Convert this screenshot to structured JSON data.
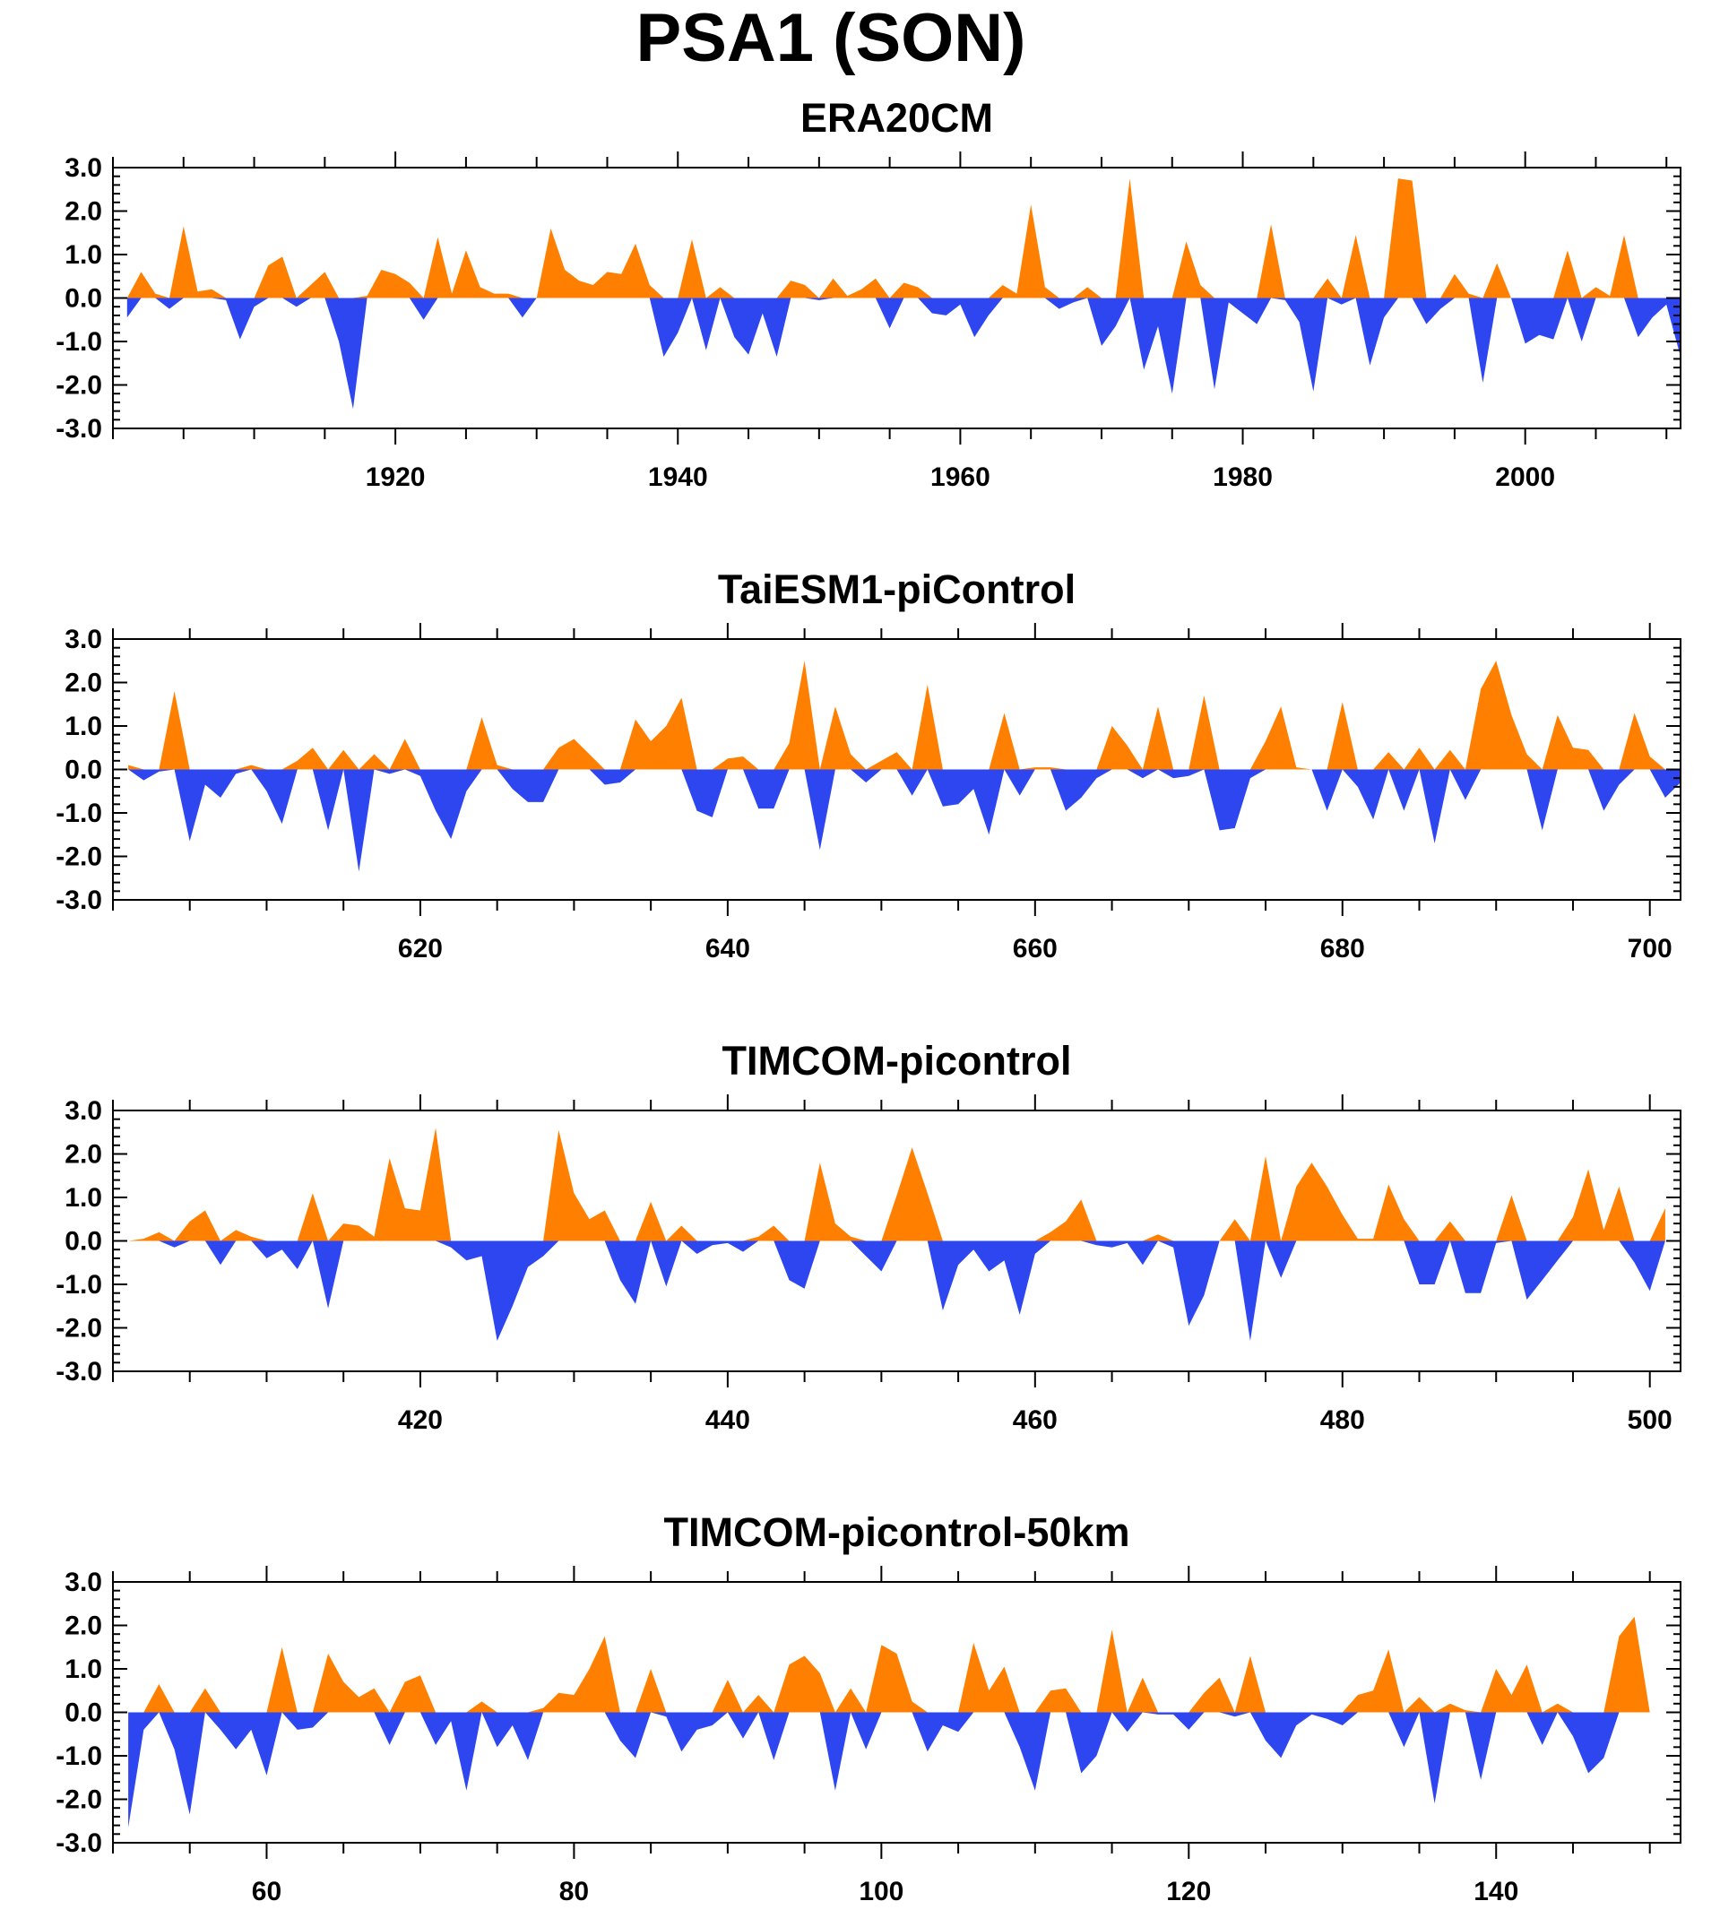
{
  "title": "PSA1 (SON)",
  "colors": {
    "positive": "#ff8000",
    "negative": "#2d46f0",
    "axis": "#000000"
  },
  "chart_data": [
    {
      "type": "area",
      "title": "ERA20CM",
      "xlabel": "",
      "ylabel": "",
      "xlim": [
        1900,
        2011
      ],
      "ylim": [
        -3,
        3
      ],
      "xticks": [
        1920,
        1940,
        1960,
        1980,
        2000
      ],
      "yticks": [
        "3.0",
        "2.0",
        "1.0",
        "0.0",
        "-1.0",
        "-2.0",
        "-3.0"
      ],
      "x_start": 1901,
      "values": [
        -0.45,
        0.6,
        0.1,
        -0.25,
        1.65,
        0.15,
        0.2,
        -0.05,
        -0.95,
        -0.2,
        0.75,
        0.95,
        -0.2,
        0.3,
        0.6,
        -1.0,
        -2.55,
        0.05,
        0.65,
        0.55,
        0.35,
        -0.5,
        1.4,
        0.1,
        1.1,
        0.25,
        0.1,
        0.1,
        -0.45,
        0.0,
        1.6,
        0.65,
        0.4,
        0.3,
        0.6,
        0.55,
        1.25,
        0.3,
        -1.35,
        -0.8,
        1.35,
        -1.2,
        0.25,
        -0.9,
        -1.3,
        -0.35,
        -1.35,
        0.4,
        0.3,
        -0.05,
        0.45,
        0.05,
        0.2,
        0.45,
        -0.7,
        0.35,
        0.25,
        -0.35,
        -0.4,
        -0.15,
        -0.9,
        -0.4,
        0.3,
        0.1,
        2.15,
        0.25,
        -0.25,
        -0.1,
        0.25,
        -1.1,
        -0.65,
        2.75,
        -1.65,
        -0.65,
        -2.2,
        1.3,
        0.3,
        -2.1,
        -0.1,
        -0.35,
        -0.6,
        1.7,
        -0.05,
        -0.55,
        -2.15,
        0.45,
        -0.15,
        1.45,
        -1.55,
        -0.45,
        2.75,
        2.7,
        -0.6,
        -0.25,
        0.55,
        0.1,
        -1.95,
        0.8,
        0.0,
        -1.05,
        -0.85,
        -0.95,
        1.1,
        -1.0,
        0.25,
        0.05,
        1.45,
        -0.9,
        -0.45,
        -0.15,
        -1.35
      ]
    },
    {
      "type": "area",
      "title": "TaiESM1-piControl",
      "xlabel": "",
      "ylabel": "",
      "xlim": [
        600,
        702
      ],
      "ylim": [
        -3,
        3
      ],
      "xticks": [
        620,
        640,
        660,
        680,
        700
      ],
      "yticks": [
        "3.0",
        "2.0",
        "1.0",
        "0.0",
        "-1.0",
        "-2.0",
        "-3.0"
      ],
      "x_start": 601,
      "values": [
        0.1,
        -0.25,
        -0.05,
        1.8,
        -1.65,
        -0.35,
        -0.65,
        -0.1,
        0.1,
        -0.5,
        -1.25,
        0.2,
        0.5,
        -1.4,
        0.45,
        -2.35,
        0.35,
        -0.1,
        0.7,
        -0.15,
        -0.95,
        -1.6,
        -0.5,
        1.2,
        0.1,
        -0.45,
        -0.75,
        -0.75,
        0.5,
        0.7,
        0.35,
        -0.35,
        -0.3,
        1.15,
        0.65,
        1.0,
        1.65,
        -0.95,
        -1.1,
        0.25,
        0.3,
        -0.9,
        -0.9,
        0.6,
        2.5,
        -1.85,
        1.45,
        0.35,
        -0.3,
        0.2,
        0.4,
        -0.6,
        1.95,
        -0.85,
        -0.8,
        -0.45,
        -1.5,
        1.3,
        -0.6,
        0.05,
        0.05,
        -0.95,
        -0.65,
        -0.2,
        1.0,
        0.55,
        -0.2,
        1.45,
        -0.2,
        -0.15,
        1.7,
        -1.4,
        -1.35,
        -0.2,
        0.65,
        1.45,
        0.05,
        0.0,
        -0.95,
        1.55,
        -0.4,
        -1.15,
        0.4,
        -0.95,
        0.5,
        -1.7,
        0.45,
        -0.7,
        1.85,
        2.5,
        1.25,
        0.35,
        -1.4,
        1.25,
        0.5,
        0.45,
        -0.95,
        -0.35,
        1.3,
        0.3,
        -0.65,
        -0.3
      ]
    },
    {
      "type": "area",
      "title": "TIMCOM-picontrol",
      "xlabel": "",
      "ylabel": "",
      "xlim": [
        400,
        502
      ],
      "ylim": [
        -3,
        3
      ],
      "xticks": [
        420,
        440,
        460,
        480,
        500
      ],
      "yticks": [
        "3.0",
        "2.0",
        "1.0",
        "0.0",
        "-1.0",
        "-2.0",
        "-3.0"
      ],
      "x_start": 401,
      "values": [
        0.0,
        0.05,
        0.2,
        -0.15,
        0.45,
        0.7,
        -0.55,
        0.25,
        0.1,
        -0.4,
        -0.2,
        -0.65,
        1.1,
        -1.55,
        0.4,
        0.35,
        0.1,
        1.9,
        0.75,
        0.7,
        2.6,
        -0.15,
        -0.45,
        -0.35,
        -2.3,
        -1.5,
        -0.6,
        -0.35,
        2.55,
        1.1,
        0.5,
        0.7,
        -0.9,
        -1.45,
        0.9,
        -1.05,
        0.35,
        -0.3,
        -0.1,
        -0.05,
        -0.25,
        0.1,
        0.35,
        -0.9,
        -1.1,
        1.8,
        0.4,
        0.1,
        -0.35,
        -0.7,
        1.05,
        2.15,
        1.1,
        -1.6,
        -0.55,
        -0.2,
        -0.7,
        -0.45,
        -1.7,
        -0.3,
        0.2,
        0.45,
        0.95,
        -0.1,
        -0.15,
        -0.05,
        -0.55,
        0.15,
        -0.15,
        -1.95,
        -1.25,
        0.0,
        0.5,
        -2.3,
        1.95,
        -0.85,
        1.25,
        1.8,
        1.25,
        0.6,
        0.05,
        0.05,
        1.3,
        0.5,
        -1.0,
        -1.0,
        0.45,
        -1.2,
        -1.2,
        -0.05,
        1.05,
        -1.35,
        -0.9,
        -0.45,
        0.55,
        1.65,
        0.25,
        1.25,
        -0.5,
        -1.15,
        0.75
      ]
    },
    {
      "type": "area",
      "title": "TIMCOM-picontrol-50km",
      "xlabel": "",
      "ylabel": "",
      "xlim": [
        50,
        152
      ],
      "ylim": [
        -3,
        3
      ],
      "xticks": [
        60,
        80,
        100,
        120,
        140
      ],
      "yticks": [
        "3.0",
        "2.0",
        "1.0",
        "0.0",
        "-1.0",
        "-2.0",
        "-3.0"
      ],
      "x_start": 51,
      "values": [
        -2.65,
        -0.4,
        0.65,
        -0.85,
        -2.35,
        0.55,
        -0.4,
        -0.85,
        -0.4,
        -1.45,
        1.5,
        -0.4,
        -0.35,
        1.35,
        0.7,
        0.35,
        0.55,
        -0.75,
        0.7,
        0.85,
        -0.75,
        -0.2,
        -1.8,
        0.25,
        -0.8,
        -0.3,
        -1.1,
        0.1,
        0.45,
        0.4,
        1.0,
        1.75,
        -0.65,
        -1.05,
        1.0,
        -0.1,
        -0.9,
        -0.4,
        -0.3,
        0.75,
        -0.6,
        0.4,
        -1.1,
        1.1,
        1.3,
        0.9,
        -1.8,
        0.55,
        -0.85,
        1.55,
        1.35,
        0.25,
        -0.9,
        -0.3,
        -0.45,
        1.6,
        0.5,
        1.05,
        -0.8,
        -1.8,
        0.5,
        0.55,
        -1.4,
        -1.0,
        1.9,
        -0.45,
        0.8,
        -0.05,
        -0.05,
        -0.4,
        0.45,
        0.8,
        -0.1,
        1.3,
        -0.65,
        -1.05,
        -0.3,
        -0.05,
        -0.15,
        -0.3,
        0.4,
        0.5,
        1.45,
        -0.8,
        0.35,
        -2.1,
        0.2,
        0.05,
        -1.55,
        1.0,
        0.4,
        1.1,
        -0.75,
        0.2,
        -0.55,
        -1.4,
        -1.05,
        1.75,
        2.2,
        0.0
      ]
    }
  ]
}
